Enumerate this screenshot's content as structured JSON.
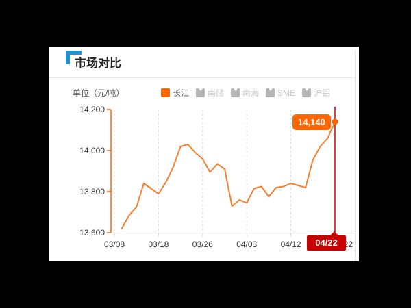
{
  "panel": {
    "title": "市场对比"
  },
  "chart": {
    "unit_label": "单位（元/吨）",
    "last_point": {
      "value_label": "14,140",
      "date_label": "04/22"
    }
  },
  "legend": {
    "items": [
      {
        "key": "changjiang",
        "label": "长江",
        "active": true
      },
      {
        "key": "nanchu",
        "label": "南储",
        "active": false
      },
      {
        "key": "nanhai",
        "label": "南海",
        "active": false
      },
      {
        "key": "sme",
        "label": "SME",
        "active": false
      },
      {
        "key": "hulv",
        "label": "沪铝",
        "active": false
      }
    ]
  },
  "chart_data": {
    "type": "line",
    "title": "市场对比",
    "ylabel": "单位（元/吨）",
    "x_ticks": [
      "03/08",
      "03/18",
      "03/26",
      "04/03",
      "04/12",
      "04/22"
    ],
    "y_ticks": [
      "14,200",
      "14,000",
      "13,800",
      "13,600"
    ],
    "ylim": [
      13600,
      14200
    ],
    "grid": "vertical-dashed",
    "legend_position": "top",
    "series": [
      {
        "name": "长江",
        "color": "#ff6600",
        "values": [
          13620,
          13685,
          13725,
          13840,
          13815,
          13790,
          13845,
          13920,
          14020,
          14030,
          13990,
          13960,
          13895,
          13935,
          13910,
          13730,
          13760,
          13745,
          13815,
          13825,
          13775,
          13820,
          13825,
          13840,
          13830,
          13820,
          13955,
          14020,
          14060,
          14140
        ]
      }
    ],
    "inactive_series": [
      "南储",
      "南海",
      "SME",
      "沪铝"
    ],
    "annotations": {
      "last_value_tooltip": "14,140",
      "crosshair_date": "04/22"
    }
  },
  "colors": {
    "accent_blue": "#2291cf",
    "orange": "#ff6600",
    "line_orange": "#f97d2e",
    "red": "#c80000",
    "grid": "#dddddd",
    "axis_gray": "#cccccc"
  }
}
